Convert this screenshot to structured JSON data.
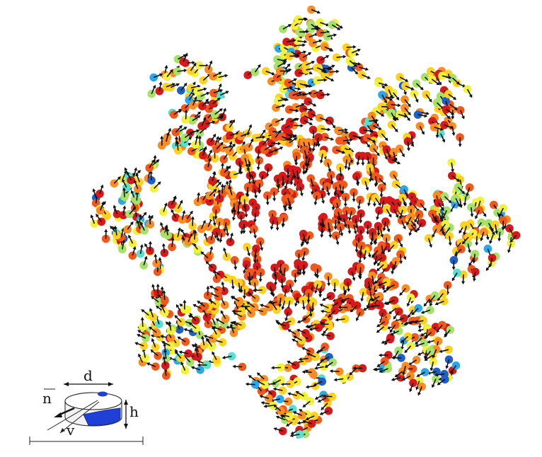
{
  "figure": {
    "colors": {
      "particle_palette": [
        "#d7191c",
        "#f0581c",
        "#fd8d22",
        "#ffd21f",
        "#f2f23a",
        "#a6e26a",
        "#55e0d3",
        "#2aa8ee",
        "#1f5fc8"
      ],
      "arrow": "#111111",
      "schematic_blue": "#1f3fd6"
    },
    "schematic": {
      "labels": {
        "d": "d",
        "n": "n",
        "h": "h",
        "v": "v"
      }
    }
  }
}
